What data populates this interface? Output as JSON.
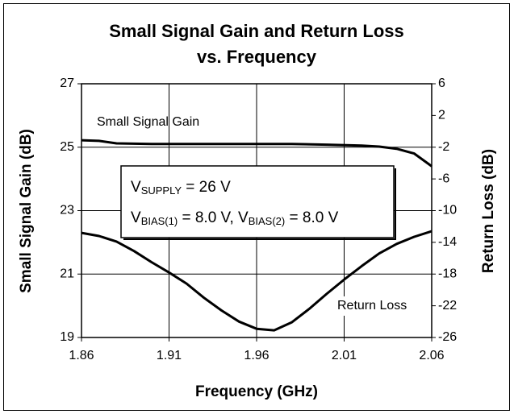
{
  "chart_data": {
    "type": "line",
    "title": [
      "Small Signal Gain and Return Loss",
      "vs. Frequency"
    ],
    "x_label": "Frequency (GHz)",
    "y_label": "Small Signal Gain (dB)",
    "y2_label": "Return Loss (dB)",
    "xlim": [
      1.86,
      2.06
    ],
    "xticks": [
      1.86,
      1.91,
      1.96,
      2.01,
      2.06
    ],
    "ylim": [
      19,
      27
    ],
    "yticks": [
      19,
      21,
      23,
      25,
      27
    ],
    "y2lim": [
      -26,
      6
    ],
    "y2ticks": [
      -26,
      -22,
      -18,
      -14,
      -10,
      -6,
      -2,
      2,
      6
    ],
    "grid": true,
    "series": [
      {
        "name": "Small Signal Gain",
        "color": "#000000",
        "x": [
          1.86,
          1.87,
          1.88,
          1.9,
          1.92,
          1.94,
          1.96,
          1.98,
          2.0,
          2.02,
          2.03,
          2.04,
          2.05,
          2.06
        ],
        "values": [
          25.22,
          25.2,
          25.12,
          25.1,
          25.1,
          25.1,
          25.1,
          25.1,
          25.08,
          25.05,
          25.02,
          24.95,
          24.8,
          24.4
        ]
      },
      {
        "name": "Return Loss",
        "color": "#000000",
        "axis": "y2",
        "x": [
          1.86,
          1.87,
          1.88,
          1.89,
          1.9,
          1.91,
          1.92,
          1.93,
          1.94,
          1.95,
          1.96,
          1.97,
          1.98,
          1.99,
          2.0,
          2.01,
          2.02,
          2.03,
          2.04,
          2.05,
          2.06
        ],
        "values": [
          -12.8,
          -13.2,
          -13.9,
          -15.1,
          -16.5,
          -17.8,
          -19.2,
          -21.0,
          -22.6,
          -24.0,
          -24.9,
          -25.1,
          -24.1,
          -22.4,
          -20.5,
          -18.7,
          -17.0,
          -15.4,
          -14.2,
          -13.3,
          -12.6
        ]
      }
    ],
    "annotation_box": [
      [
        "V",
        "SUPPLY",
        " = 26 V"
      ],
      [
        "V",
        "BIAS(1)",
        " = 8.0 V,  V",
        "BIAS(2)",
        " = 8.0 V"
      ]
    ]
  }
}
